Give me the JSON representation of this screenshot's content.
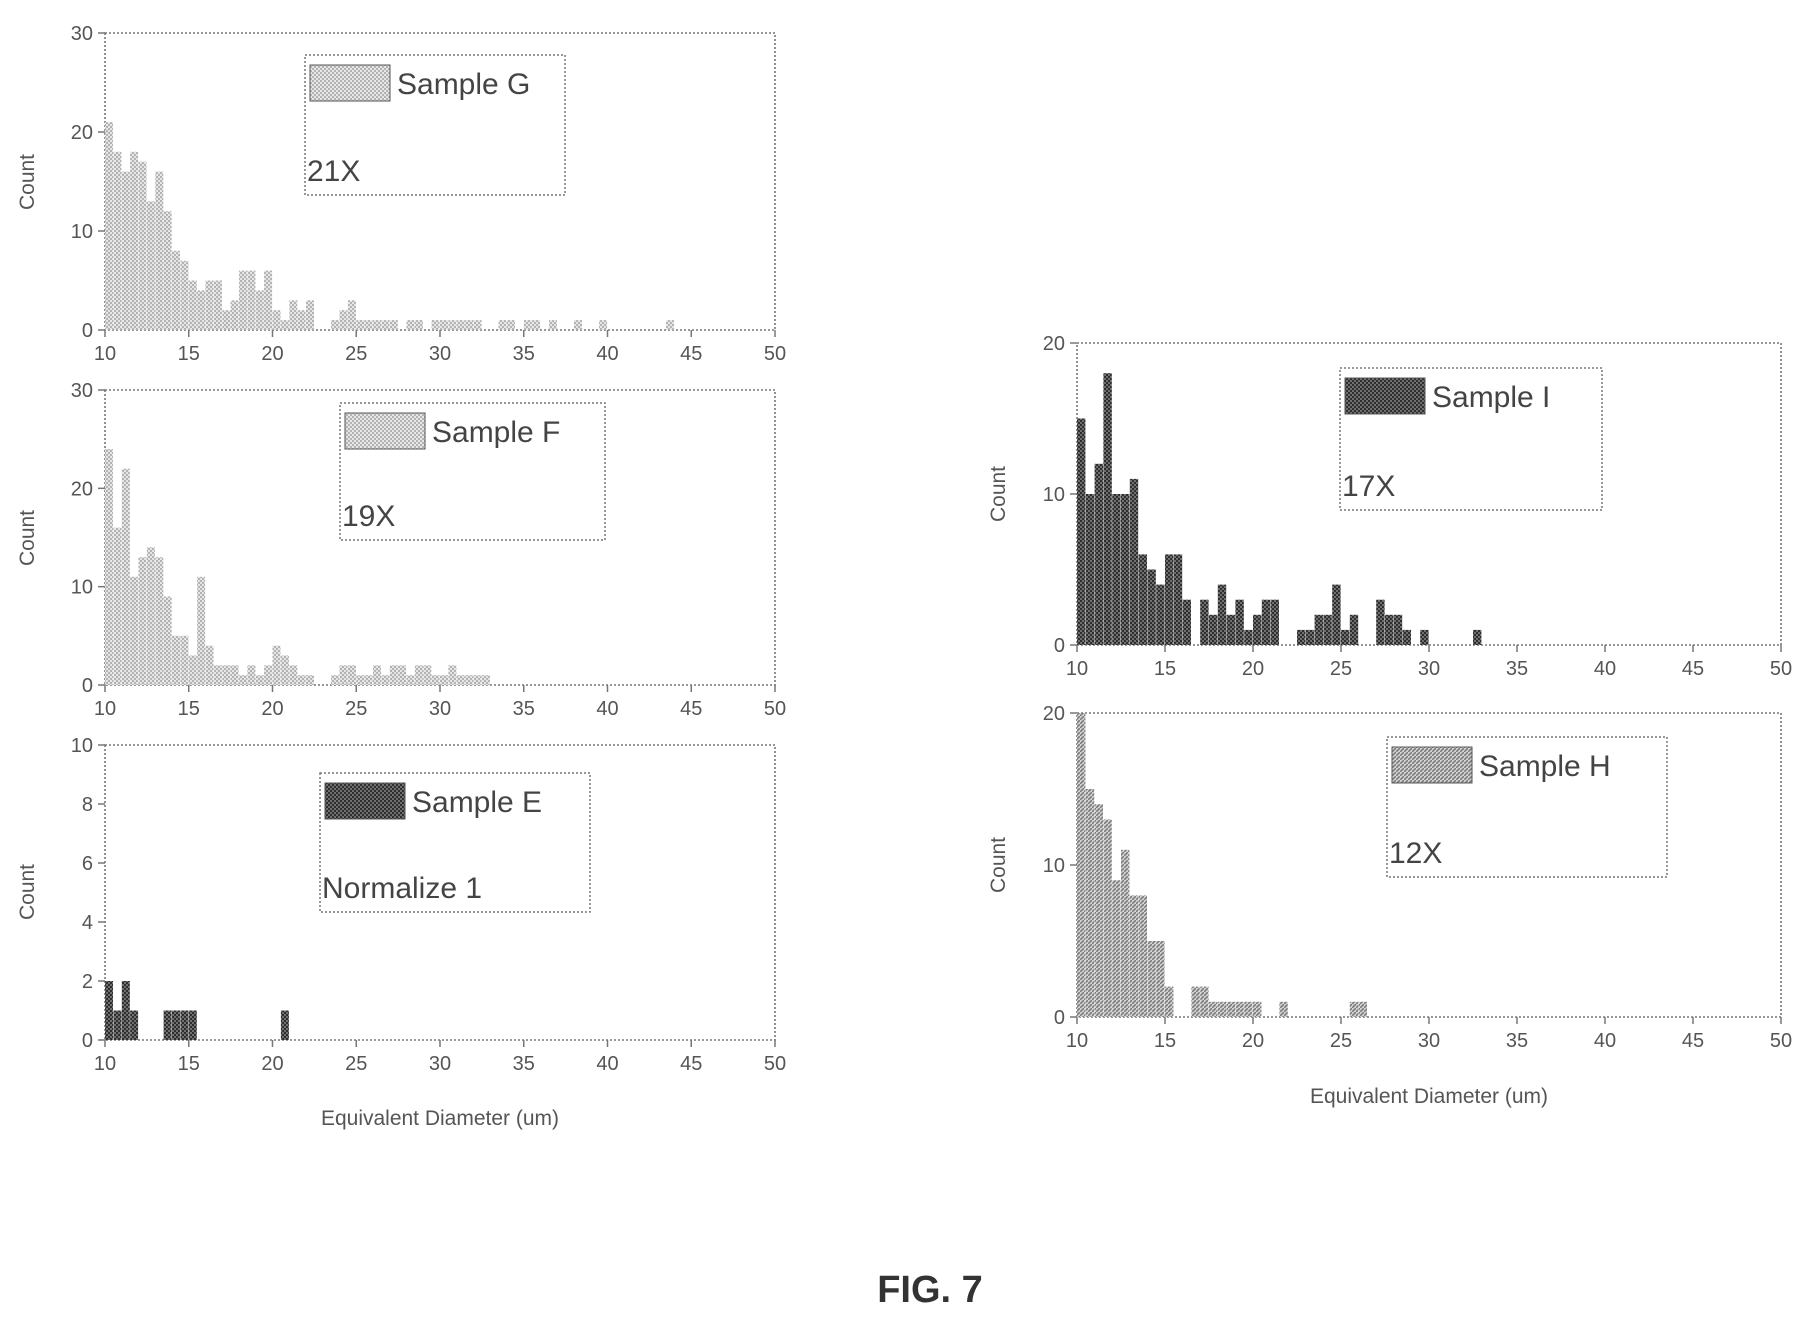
{
  "figure": {
    "caption": "FIG. 7"
  },
  "pattern_colors": {
    "light": "#b3b3b3",
    "medium": "#7d7d7d",
    "dark": "#2e2e2e"
  },
  "chart_data": [
    {
      "id": "g",
      "type": "bar",
      "shade": "light",
      "legend": {
        "label": "Sample G",
        "note": "21X"
      },
      "xlabel": "",
      "ylabel": "Count",
      "xlim": [
        10,
        50
      ],
      "ylim": [
        0,
        30
      ],
      "xticks": [
        10,
        15,
        20,
        25,
        30,
        35,
        40,
        45,
        50
      ],
      "yticks": [
        0,
        10,
        20,
        30
      ],
      "bin_width": 0.5,
      "x": [
        10,
        10.5,
        11,
        11.5,
        12,
        12.5,
        13,
        13.5,
        14,
        14.5,
        15,
        15.5,
        16,
        16.5,
        17,
        17.5,
        18,
        18.5,
        19,
        19.5,
        20,
        20.5,
        21,
        21.5,
        22,
        23.5,
        24,
        24.5,
        25,
        25.5,
        26,
        26.5,
        27,
        28,
        28.5,
        29.5,
        30,
        30.5,
        31,
        31.5,
        32,
        33.5,
        34,
        35,
        35.5,
        36.5,
        38,
        39.5,
        43.5
      ],
      "values": [
        21,
        18,
        16,
        18,
        17,
        13,
        16,
        12,
        8,
        7,
        5,
        4,
        5,
        5,
        2,
        3,
        6,
        6,
        4,
        6,
        2,
        1,
        3,
        2,
        3,
        1,
        2,
        3,
        1,
        1,
        1,
        1,
        1,
        1,
        1,
        1,
        1,
        1,
        1,
        1,
        1,
        1,
        1,
        1,
        1,
        1,
        1,
        1,
        1
      ]
    },
    {
      "id": "f",
      "type": "bar",
      "shade": "light",
      "legend": {
        "label": "Sample F",
        "note": "19X"
      },
      "xlabel": "",
      "ylabel": "Count",
      "xlim": [
        10,
        50
      ],
      "ylim": [
        0,
        30
      ],
      "xticks": [
        10,
        15,
        20,
        25,
        30,
        35,
        40,
        45,
        50
      ],
      "yticks": [
        0,
        10,
        20,
        30
      ],
      "bin_width": 0.5,
      "x": [
        10,
        10.5,
        11,
        11.5,
        12,
        12.5,
        13,
        13.5,
        14,
        14.5,
        15,
        15.5,
        16,
        16.5,
        17,
        17.5,
        18,
        18.5,
        19,
        19.5,
        20,
        20.5,
        21,
        21.5,
        22,
        23.5,
        24,
        24.5,
        25,
        25.5,
        26,
        26.5,
        27,
        27.5,
        28,
        28.5,
        29,
        29.5,
        30,
        30.5,
        31,
        31.5,
        32,
        32.5
      ],
      "values": [
        24,
        16,
        22,
        11,
        13,
        14,
        13,
        9,
        5,
        5,
        3,
        11,
        4,
        2,
        2,
        2,
        1,
        2,
        1,
        2,
        4,
        3,
        2,
        1,
        1,
        1,
        2,
        2,
        1,
        1,
        2,
        1,
        2,
        2,
        1,
        2,
        2,
        1,
        1,
        2,
        1,
        1,
        1,
        1
      ]
    },
    {
      "id": "e",
      "type": "bar",
      "shade": "dark",
      "legend": {
        "label": "Sample E",
        "note": "Normalize 1"
      },
      "xlabel": "Equivalent Diameter (um)",
      "ylabel": "Count",
      "xlim": [
        10,
        50
      ],
      "ylim": [
        0,
        10
      ],
      "xticks": [
        10,
        15,
        20,
        25,
        30,
        35,
        40,
        45,
        50
      ],
      "yticks": [
        0,
        2,
        4,
        6,
        8,
        10
      ],
      "bin_width": 0.5,
      "x": [
        10,
        10.5,
        11,
        11.5,
        13.5,
        14,
        14.5,
        15,
        20.5
      ],
      "values": [
        2,
        1,
        2,
        1,
        1,
        1,
        1,
        1,
        1
      ]
    },
    {
      "id": "i",
      "type": "bar",
      "shade": "dark",
      "legend": {
        "label": "Sample I",
        "note": "17X"
      },
      "xlabel": "",
      "ylabel": "Count",
      "xlim": [
        10,
        50
      ],
      "ylim": [
        0,
        20
      ],
      "xticks": [
        10,
        15,
        20,
        25,
        30,
        35,
        40,
        45,
        50
      ],
      "yticks": [
        0,
        10,
        20
      ],
      "bin_width": 0.5,
      "x": [
        10,
        10.5,
        11,
        11.5,
        12,
        12.5,
        13,
        13.5,
        14,
        14.5,
        15,
        15.5,
        16,
        17,
        17.5,
        18,
        18.5,
        19,
        19.5,
        20,
        20.5,
        21,
        22.5,
        23,
        23.5,
        24,
        24.5,
        25,
        25.5,
        27,
        27.5,
        28,
        28.5,
        29.5,
        32.5
      ],
      "values": [
        15,
        10,
        12,
        18,
        10,
        10,
        11,
        6,
        5,
        4,
        6,
        6,
        3,
        3,
        2,
        4,
        2,
        3,
        1,
        2,
        3,
        3,
        1,
        1,
        2,
        2,
        4,
        1,
        2,
        3,
        2,
        2,
        1,
        1,
        1
      ]
    },
    {
      "id": "h",
      "type": "bar",
      "shade": "medium",
      "legend": {
        "label": "Sample H",
        "note": "12X"
      },
      "xlabel": "Equivalent Diameter (um)",
      "ylabel": "Count",
      "xlim": [
        10,
        50
      ],
      "ylim": [
        0,
        20
      ],
      "xticks": [
        10,
        15,
        20,
        25,
        30,
        35,
        40,
        45,
        50
      ],
      "yticks": [
        0,
        10,
        20
      ],
      "bin_width": 0.5,
      "x": [
        10,
        10.5,
        11,
        11.5,
        12,
        12.5,
        13,
        13.5,
        14,
        14.5,
        15,
        16.5,
        17,
        17.5,
        18,
        18.5,
        19,
        19.5,
        20,
        21.5,
        25.5,
        26
      ],
      "values": [
        20,
        15,
        14,
        13,
        9,
        11,
        8,
        8,
        5,
        5,
        2,
        2,
        2,
        1,
        1,
        1,
        1,
        1,
        1,
        1,
        1,
        1
      ]
    }
  ]
}
